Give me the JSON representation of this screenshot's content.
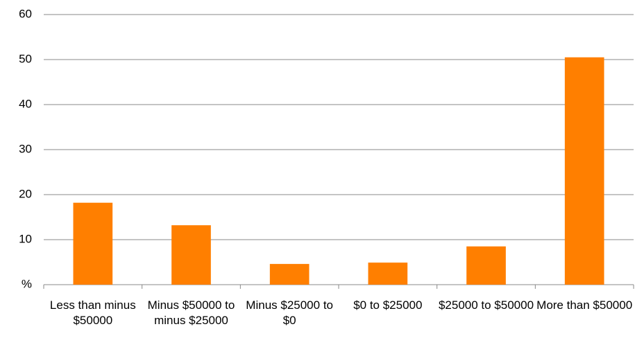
{
  "chart_data": {
    "type": "bar",
    "categories": [
      "Less than minus $50000",
      "Minus $50000 to minus $25000",
      "Minus $25000 to $0",
      "$0 to $25000",
      "$25000 to $50000",
      "More than $50000"
    ],
    "values": [
      18.2,
      13.2,
      4.6,
      4.9,
      8.5,
      50.5
    ],
    "color": "#ff7f00",
    "ylim": [
      0,
      60
    ],
    "yticks": [
      {
        "value": 0,
        "label": "%"
      },
      10,
      20,
      30,
      40,
      50,
      60
    ],
    "grid": true
  }
}
